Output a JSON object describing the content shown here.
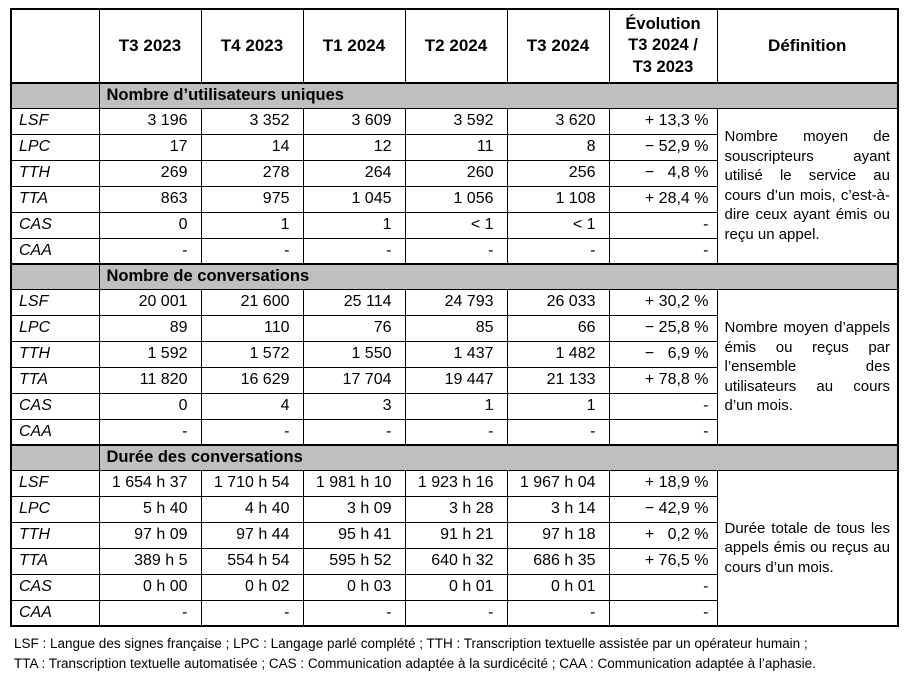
{
  "table": {
    "header": {
      "corner": "",
      "columns": [
        "T3 2023",
        "T4 2023",
        "T1 2024",
        "T2 2024",
        "T3 2024"
      ],
      "evolution": "Évolution\nT3 2024 /\nT3 2023",
      "definition": "Définition"
    },
    "sections": [
      {
        "title": "Nombre d’utilisateurs uniques",
        "definition": "Nombre moyen de souscripteurs ayant utilisé le service au cours d’un mois, c’est-à-dire ceux ayant émis ou reçu un appel.",
        "rows": [
          {
            "label": "LSF",
            "values": [
              "3 196",
              "3 352",
              "3 609",
              "3 592",
              "3 620"
            ],
            "evolution": "+ 13,3 %"
          },
          {
            "label": "LPC",
            "values": [
              "17",
              "14",
              "12",
              "11",
              "8"
            ],
            "evolution": "− 52,9 %"
          },
          {
            "label": "TTH",
            "values": [
              "269",
              "278",
              "264",
              "260",
              "256"
            ],
            "evolution": "−   4,8 %"
          },
          {
            "label": "TTA",
            "values": [
              "863",
              "975",
              "1 045",
              "1 056",
              "1 108"
            ],
            "evolution": "+ 28,4 %"
          },
          {
            "label": "CAS",
            "values": [
              "0",
              "1",
              "1",
              "< 1",
              "< 1"
            ],
            "evolution": "-"
          },
          {
            "label": "CAA",
            "values": [
              "-",
              "-",
              "-",
              "-",
              "-"
            ],
            "evolution": "-"
          }
        ]
      },
      {
        "title": "Nombre de conversations",
        "definition": "Nombre moyen d’appels émis ou reçus par l’ensemble des utilisateurs au cours d’un mois.",
        "rows": [
          {
            "label": "LSF",
            "values": [
              "20 001",
              "21 600",
              "25 114",
              "24 793",
              "26 033"
            ],
            "evolution": "+ 30,2 %"
          },
          {
            "label": "LPC",
            "values": [
              "89",
              "110",
              "76",
              "85",
              "66"
            ],
            "evolution": "− 25,8 %"
          },
          {
            "label": "TTH",
            "values": [
              "1 592",
              "1 572",
              "1 550",
              "1 437",
              "1 482"
            ],
            "evolution": "−   6,9 %"
          },
          {
            "label": "TTA",
            "values": [
              "11 820",
              "16 629",
              "17 704",
              "19 447",
              "21 133"
            ],
            "evolution": "+ 78,8 %"
          },
          {
            "label": "CAS",
            "values": [
              "0",
              "4",
              "3",
              "1",
              "1"
            ],
            "evolution": "-"
          },
          {
            "label": "CAA",
            "values": [
              "-",
              "-",
              "-",
              "-",
              "-"
            ],
            "evolution": "-"
          }
        ]
      },
      {
        "title": "Durée des conversations",
        "definition": "Durée totale de tous les appels émis ou reçus au cours d’un mois.",
        "rows": [
          {
            "label": "LSF",
            "values": [
              "1 654 h 37",
              "1 710 h 54",
              "1 981 h 10",
              "1 923 h 16",
              "1 967 h 04"
            ],
            "evolution": "+ 18,9 %"
          },
          {
            "label": "LPC",
            "values": [
              "5 h 40",
              "4 h 40",
              "3 h 09",
              "3 h 28",
              "3 h 14"
            ],
            "evolution": "− 42,9 %"
          },
          {
            "label": "TTH",
            "values": [
              "97 h 09",
              "97 h 44",
              "95 h 41",
              "91 h 21",
              "97 h 18"
            ],
            "evolution": "+   0,2 %"
          },
          {
            "label": "TTA",
            "values": [
              "389 h 5",
              "554 h 54",
              "595 h 52",
              "640 h 32",
              "686 h 35"
            ],
            "evolution": "+ 76,5 %"
          },
          {
            "label": "CAS",
            "values": [
              "0 h 00",
              "0 h 02",
              "0 h 03",
              "0 h 01",
              "0 h 01"
            ],
            "evolution": "-"
          },
          {
            "label": "CAA",
            "values": [
              "-",
              "-",
              "-",
              "-",
              "-"
            ],
            "evolution": "-"
          }
        ]
      }
    ]
  },
  "footnotes": [
    "LSF : Langue des signes française ; LPC : Langage parlé complété ; TTH : Transcription textuelle assistée par un opérateur humain ;",
    "TTA : Transcription textuelle automatisée ; CAS : Communication adaptée à la surdicécité ; CAA : Communication adaptée à l’aphasie."
  ],
  "colors": {
    "band_background": "#bfbfbf",
    "border": "#000000",
    "text": "#000000"
  }
}
